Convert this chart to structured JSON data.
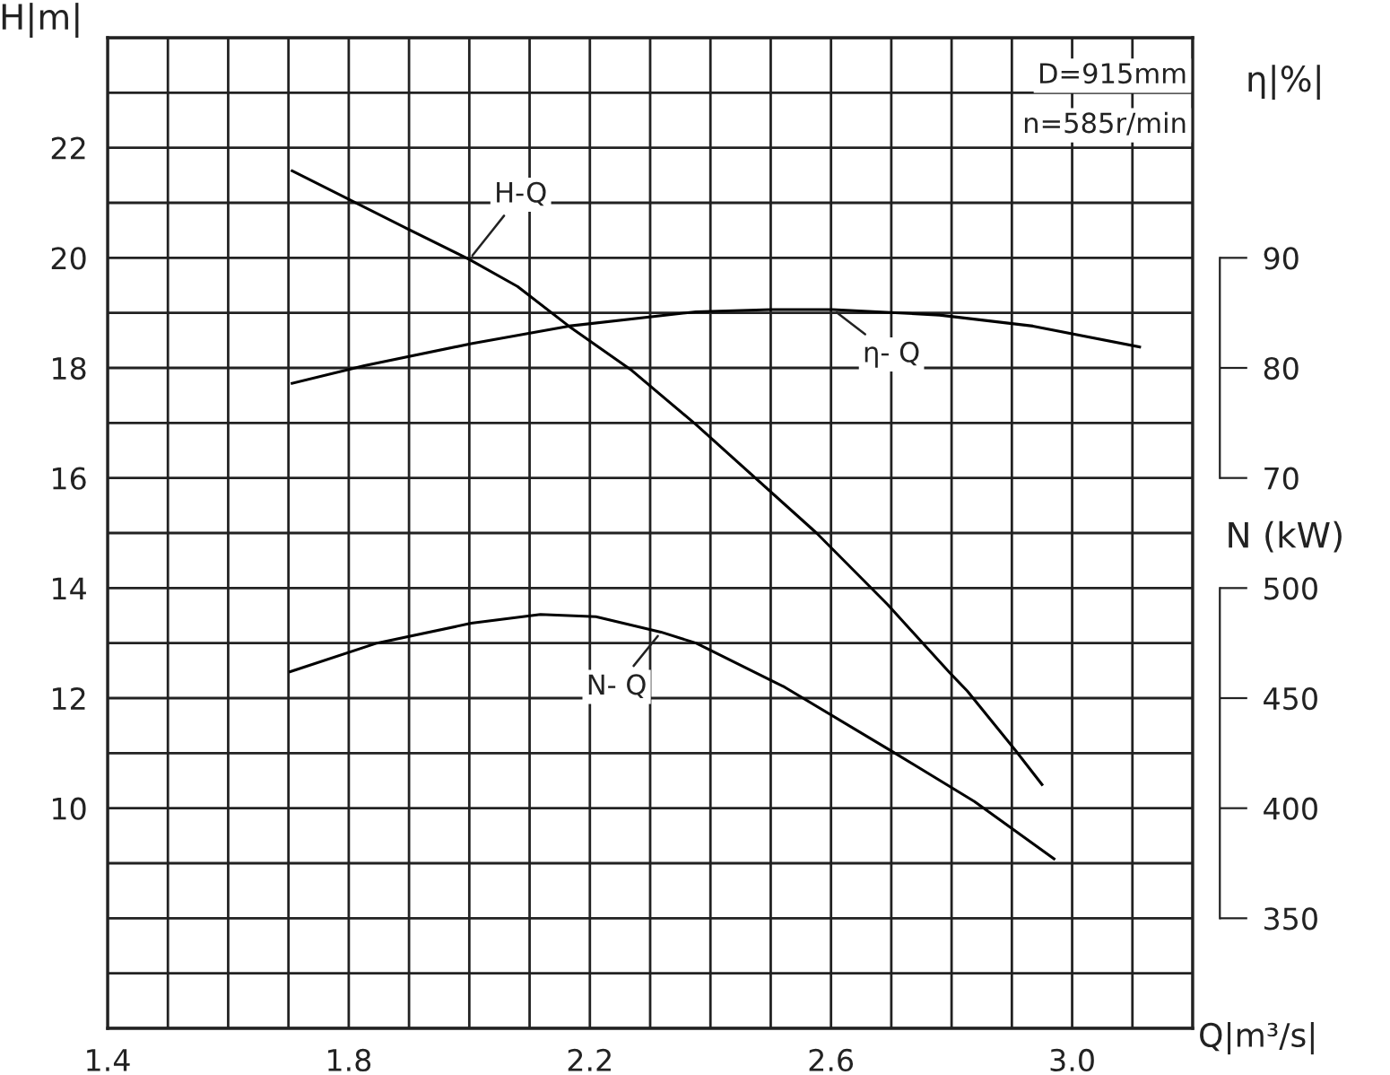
{
  "chart_data": {
    "type": "line",
    "xlabel": "Q|m³/s|",
    "ylabel": "H|m|",
    "y2label": "η|%|",
    "y3label": "N (kW)",
    "xlim": [
      1.4,
      3.2
    ],
    "xticks": [
      1.4,
      {
        "value": 1.5,
        "label": null
      },
      {
        "value": 1.6,
        "label": null
      },
      {
        "value": 1.7,
        "label": null
      },
      1.8,
      {
        "value": 1.9,
        "label": null
      },
      {
        "value": 2.0,
        "label": null
      },
      {
        "value": 2.1,
        "label": null
      },
      2.2,
      {
        "value": 2.3,
        "label": null
      },
      {
        "value": 2.4,
        "label": null
      },
      {
        "value": 2.5,
        "label": null
      },
      2.6,
      {
        "value": 2.7,
        "label": null
      },
      {
        "value": 2.8,
        "label": null
      },
      {
        "value": 2.9,
        "label": null
      },
      {
        "value": 3.0,
        "label": "3.0"
      },
      {
        "value": 3.1,
        "label": null
      },
      {
        "value": 3.2,
        "label": null
      }
    ],
    "ylim": [
      6,
      24
    ],
    "yticks": [
      {
        "value": 6,
        "label": null
      },
      {
        "value": 7,
        "label": null
      },
      {
        "value": 8,
        "label": null
      },
      {
        "value": 9,
        "label": null
      },
      10,
      {
        "value": 11,
        "label": null
      },
      12,
      {
        "value": 13,
        "label": null
      },
      14,
      {
        "value": 15,
        "label": null
      },
      16,
      {
        "value": 17,
        "label": null
      },
      18,
      {
        "value": 19,
        "label": null
      },
      20,
      {
        "value": 21,
        "label": null
      },
      22,
      {
        "value": 23,
        "label": null
      },
      {
        "value": 24,
        "label": null
      }
    ],
    "y2lim": [
      20,
      110
    ],
    "y2ticks": [
      70,
      80,
      90
    ],
    "y3lim": [
      300,
      750
    ],
    "y3ticks": [
      350,
      400,
      450,
      500
    ],
    "grid": true,
    "marker": "none",
    "line_style": "solid",
    "series": [
      {
        "color": "#000000",
        "x": [
          1.706,
          1.897,
          2.0,
          2.08,
          2.165,
          2.27,
          2.376,
          2.576,
          2.694,
          2.797,
          2.826,
          2.906,
          2.95
        ],
        "values": [
          21.58,
          20.53,
          19.97,
          19.48,
          18.76,
          17.95,
          16.97,
          15.0,
          13.7,
          12.46,
          12.13,
          11.05,
          10.43
        ]
      },
      {
        "color": "#000000",
        "axis": "y2",
        "x": [
          1.706,
          1.826,
          2.003,
          2.165,
          2.376,
          2.5,
          2.603,
          2.78,
          2.935,
          3.112
        ],
        "values": [
          78.6,
          80.2,
          82.2,
          83.8,
          85.1,
          85.3,
          85.3,
          84.8,
          83.8,
          81.9
        ]
      },
      {
        "color": "#000000",
        "axis": "y3",
        "x": [
          1.703,
          1.847,
          2.003,
          2.118,
          2.21,
          2.318,
          2.376,
          2.523,
          2.7,
          2.838,
          2.97
        ],
        "values": [
          462,
          475,
          484,
          488,
          487,
          480,
          475,
          455,
          426,
          403,
          377
        ]
      }
    ],
    "annotations": [
      {
        "text": "H-Q",
        "x": 2.0,
        "y": 19.97
      },
      {
        "text": "η- Q",
        "x": 2.603,
        "y": 19.06
      },
      {
        "text": "N- Q",
        "x": 2.318,
        "y": 13.2
      },
      "D=915mm",
      "n=585r/min"
    ]
  }
}
